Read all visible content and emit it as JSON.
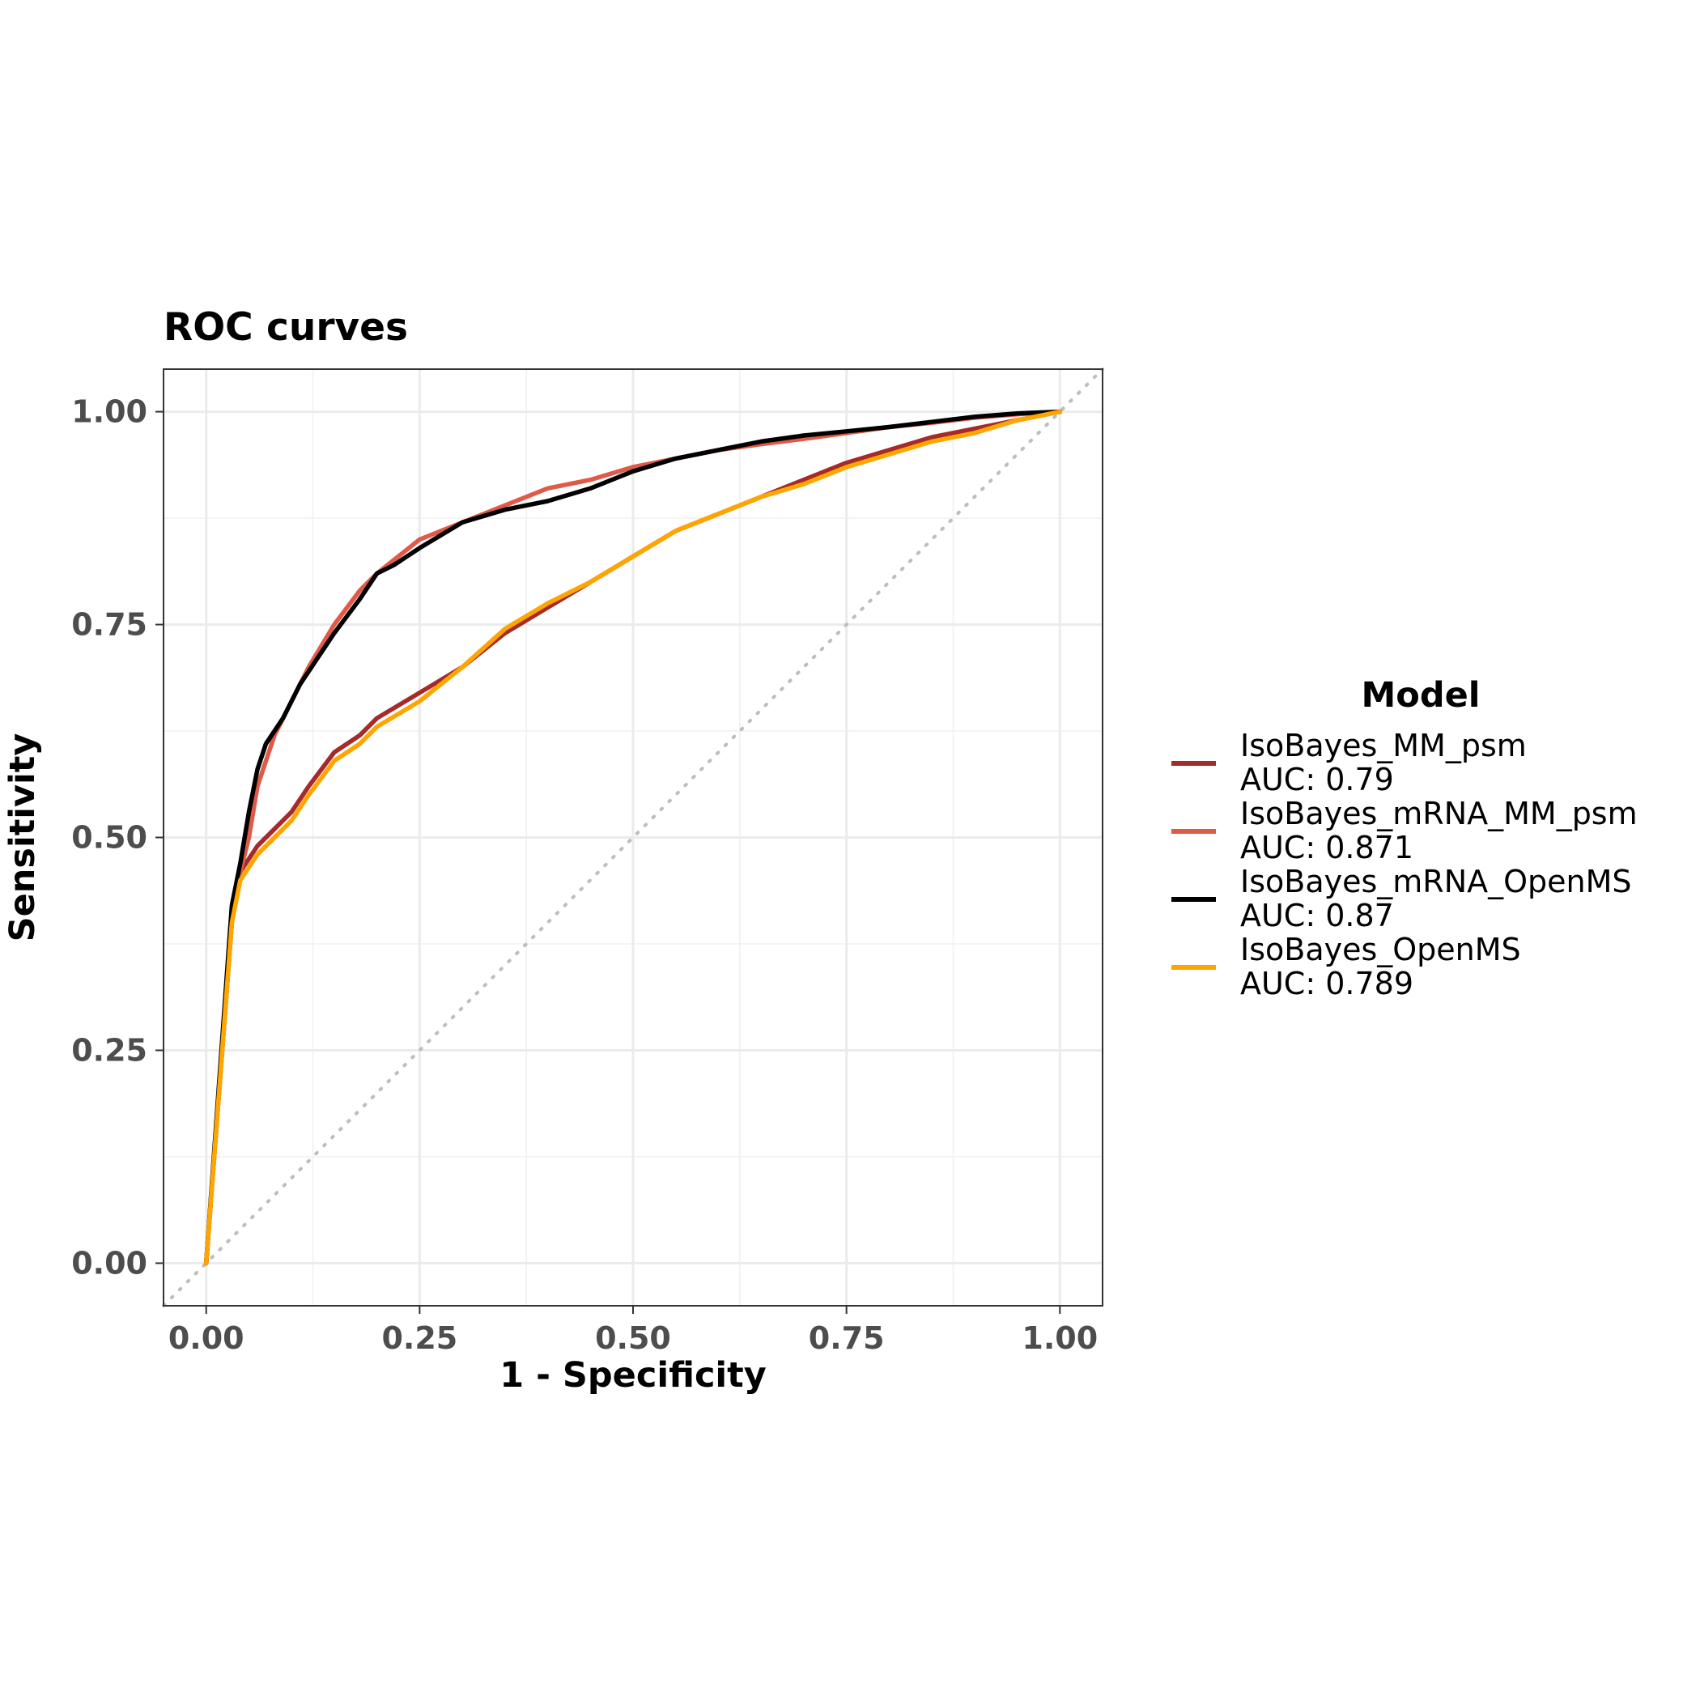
{
  "chart_data": {
    "type": "line",
    "title": "ROC curves",
    "xlabel": "1 - Specificity",
    "ylabel": "Sensitivity",
    "xlim": [
      -0.05,
      1.05
    ],
    "ylim": [
      -0.05,
      1.05
    ],
    "x_ticks": [
      "0.00",
      "0.25",
      "0.50",
      "0.75",
      "1.00"
    ],
    "y_ticks": [
      "0.00",
      "0.25",
      "0.50",
      "0.75",
      "1.00"
    ],
    "grid": true,
    "reference_line": "diagonal dotted",
    "legend": {
      "title": "Model",
      "position": "right"
    },
    "series": [
      {
        "name": "IsoBayes_MM_psm",
        "auc_label": "AUC: 0.79",
        "color": "#a52a2a",
        "x": [
          0,
          0.03,
          0.04,
          0.06,
          0.08,
          0.1,
          0.12,
          0.15,
          0.18,
          0.2,
          0.25,
          0.3,
          0.35,
          0.4,
          0.45,
          0.5,
          0.55,
          0.6,
          0.65,
          0.7,
          0.75,
          0.8,
          0.85,
          0.9,
          0.95,
          1.0
        ],
        "y": [
          0,
          0.4,
          0.46,
          0.49,
          0.51,
          0.53,
          0.56,
          0.6,
          0.62,
          0.64,
          0.67,
          0.7,
          0.74,
          0.77,
          0.8,
          0.83,
          0.86,
          0.88,
          0.9,
          0.92,
          0.94,
          0.955,
          0.97,
          0.98,
          0.99,
          1.0
        ]
      },
      {
        "name": "IsoBayes_mRNA_MM_psm",
        "auc_label": "AUC: 0.871",
        "color": "#e05a48",
        "x": [
          0,
          0.03,
          0.04,
          0.05,
          0.06,
          0.08,
          0.1,
          0.12,
          0.15,
          0.18,
          0.2,
          0.25,
          0.3,
          0.35,
          0.4,
          0.45,
          0.5,
          0.55,
          0.6,
          0.65,
          0.7,
          0.75,
          0.8,
          0.85,
          0.9,
          0.95,
          1.0
        ],
        "y": [
          0,
          0.4,
          0.46,
          0.5,
          0.56,
          0.62,
          0.66,
          0.7,
          0.75,
          0.79,
          0.81,
          0.85,
          0.87,
          0.89,
          0.91,
          0.92,
          0.935,
          0.945,
          0.955,
          0.962,
          0.968,
          0.975,
          0.982,
          0.987,
          0.993,
          0.997,
          1.0
        ]
      },
      {
        "name": "IsoBayes_mRNA_OpenMS",
        "auc_label": "AUC: 0.87",
        "color": "#000000",
        "x": [
          0,
          0.03,
          0.04,
          0.05,
          0.06,
          0.07,
          0.09,
          0.11,
          0.13,
          0.15,
          0.18,
          0.2,
          0.22,
          0.25,
          0.3,
          0.35,
          0.4,
          0.45,
          0.5,
          0.55,
          0.6,
          0.65,
          0.7,
          0.75,
          0.8,
          0.85,
          0.9,
          0.95,
          1.0
        ],
        "y": [
          0,
          0.42,
          0.47,
          0.53,
          0.58,
          0.61,
          0.64,
          0.68,
          0.71,
          0.74,
          0.78,
          0.81,
          0.82,
          0.84,
          0.87,
          0.885,
          0.895,
          0.91,
          0.93,
          0.945,
          0.955,
          0.965,
          0.972,
          0.977,
          0.982,
          0.988,
          0.994,
          0.998,
          1.0
        ]
      },
      {
        "name": "IsoBayes_OpenMS",
        "auc_label": "AUC: 0.789",
        "color": "#ffa500",
        "x": [
          0,
          0.03,
          0.04,
          0.06,
          0.08,
          0.1,
          0.12,
          0.15,
          0.18,
          0.2,
          0.25,
          0.3,
          0.35,
          0.4,
          0.45,
          0.5,
          0.55,
          0.6,
          0.65,
          0.7,
          0.75,
          0.8,
          0.85,
          0.9,
          0.95,
          1.0
        ],
        "y": [
          0,
          0.4,
          0.45,
          0.48,
          0.5,
          0.52,
          0.55,
          0.59,
          0.61,
          0.63,
          0.66,
          0.7,
          0.745,
          0.775,
          0.8,
          0.83,
          0.86,
          0.88,
          0.9,
          0.915,
          0.935,
          0.95,
          0.965,
          0.975,
          0.99,
          1.0
        ]
      }
    ]
  }
}
